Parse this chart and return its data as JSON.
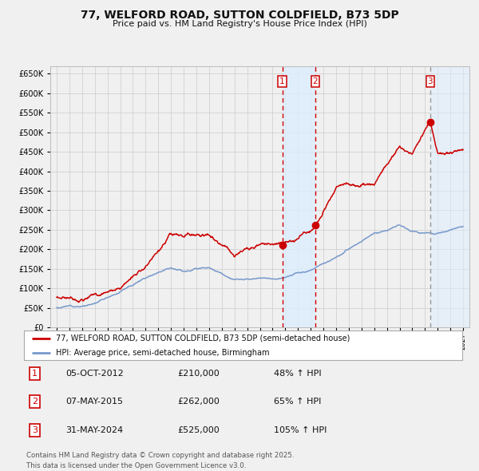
{
  "title_line1": "77, WELFORD ROAD, SUTTON COLDFIELD, B73 5DP",
  "title_line2": "Price paid vs. HM Land Registry's House Price Index (HPI)",
  "legend_red": "77, WELFORD ROAD, SUTTON COLDFIELD, B73 5DP (semi-detached house)",
  "legend_blue": "HPI: Average price, semi-detached house, Birmingham",
  "transactions": [
    {
      "label": "1",
      "date": "05-OCT-2012",
      "price": 210000,
      "pct": "48%",
      "dir": "↑",
      "x_year": 2012.76
    },
    {
      "label": "2",
      "date": "07-MAY-2015",
      "price": 262000,
      "pct": "65%",
      "dir": "↑",
      "x_year": 2015.35
    },
    {
      "label": "3",
      "date": "31-MAY-2024",
      "price": 525000,
      "pct": "105%",
      "dir": "↑",
      "x_year": 2024.41
    }
  ],
  "footnote": "Contains HM Land Registry data © Crown copyright and database right 2025.\nThis data is licensed under the Open Government Licence v3.0.",
  "ylim": [
    0,
    670000
  ],
  "xlim": [
    1994.5,
    2027.5
  ],
  "background_color": "#f0f0f0",
  "plot_bg_color": "#f0f0f0",
  "grid_color": "#cccccc",
  "red_color": "#cc0000",
  "blue_color": "#7799cc",
  "shade_color": "#ddeeff"
}
